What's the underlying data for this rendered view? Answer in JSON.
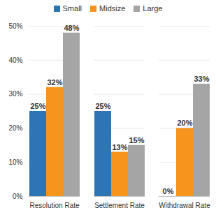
{
  "chart_data": {
    "type": "bar",
    "categories": [
      "Resolution Rate",
      "Settlement Rate",
      "Withdrawal Rate"
    ],
    "series": [
      {
        "name": "Small",
        "color": "#2e75b6",
        "values": [
          25,
          25,
          0
        ],
        "value_labels": [
          "25%",
          "25%",
          "0%"
        ]
      },
      {
        "name": "Midsize",
        "color": "#f7941d",
        "values": [
          32,
          13,
          20
        ],
        "value_labels": [
          "32%",
          "13%",
          "20%"
        ]
      },
      {
        "name": "Large",
        "color": "#a5a5a5",
        "values": [
          48,
          15,
          33
        ],
        "value_labels": [
          "48%",
          "15%",
          "33%"
        ]
      }
    ],
    "ylim": [
      0,
      50
    ],
    "yticks": [
      {
        "value": 0,
        "label": "0%"
      },
      {
        "value": 10,
        "label": "10%"
      },
      {
        "value": 20,
        "label": "20%"
      },
      {
        "value": 30,
        "label": "30%"
      },
      {
        "value": 40,
        "label": "40%"
      },
      {
        "value": 50,
        "label": "50%"
      }
    ],
    "grid": true,
    "legend": "top",
    "data_labels": true
  }
}
